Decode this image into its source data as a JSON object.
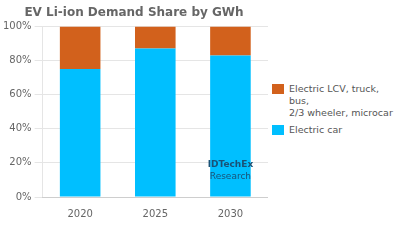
{
  "chart_data": {
    "type": "bar",
    "title": "EV Li-ion Demand Share by GWh",
    "categories": [
      "2020",
      "2025",
      "2030"
    ],
    "series": [
      {
        "name": "Electric car",
        "color": "#00BFFF",
        "values": [
          75,
          87,
          83
        ]
      },
      {
        "name": "Electric LCV, truck, bus,\n2/3 wheeler, microcar",
        "color": "#D2611C",
        "values": [
          25,
          13,
          17
        ]
      }
    ],
    "stacked": true,
    "ylim": [
      0,
      100
    ],
    "yticks": [
      {
        "value": 0,
        "label": "0%"
      },
      {
        "value": 20,
        "label": "20%"
      },
      {
        "value": 40,
        "label": "40%"
      },
      {
        "value": 60,
        "label": "60%"
      },
      {
        "value": 80,
        "label": "80%"
      },
      {
        "value": 100,
        "label": "100%"
      }
    ],
    "grid": true,
    "legend": "right",
    "annotations": [
      {
        "text": "IDTechEx",
        "x": "2030",
        "y": 19
      },
      {
        "text": "Research",
        "x": "2030",
        "y": 12
      }
    ]
  }
}
